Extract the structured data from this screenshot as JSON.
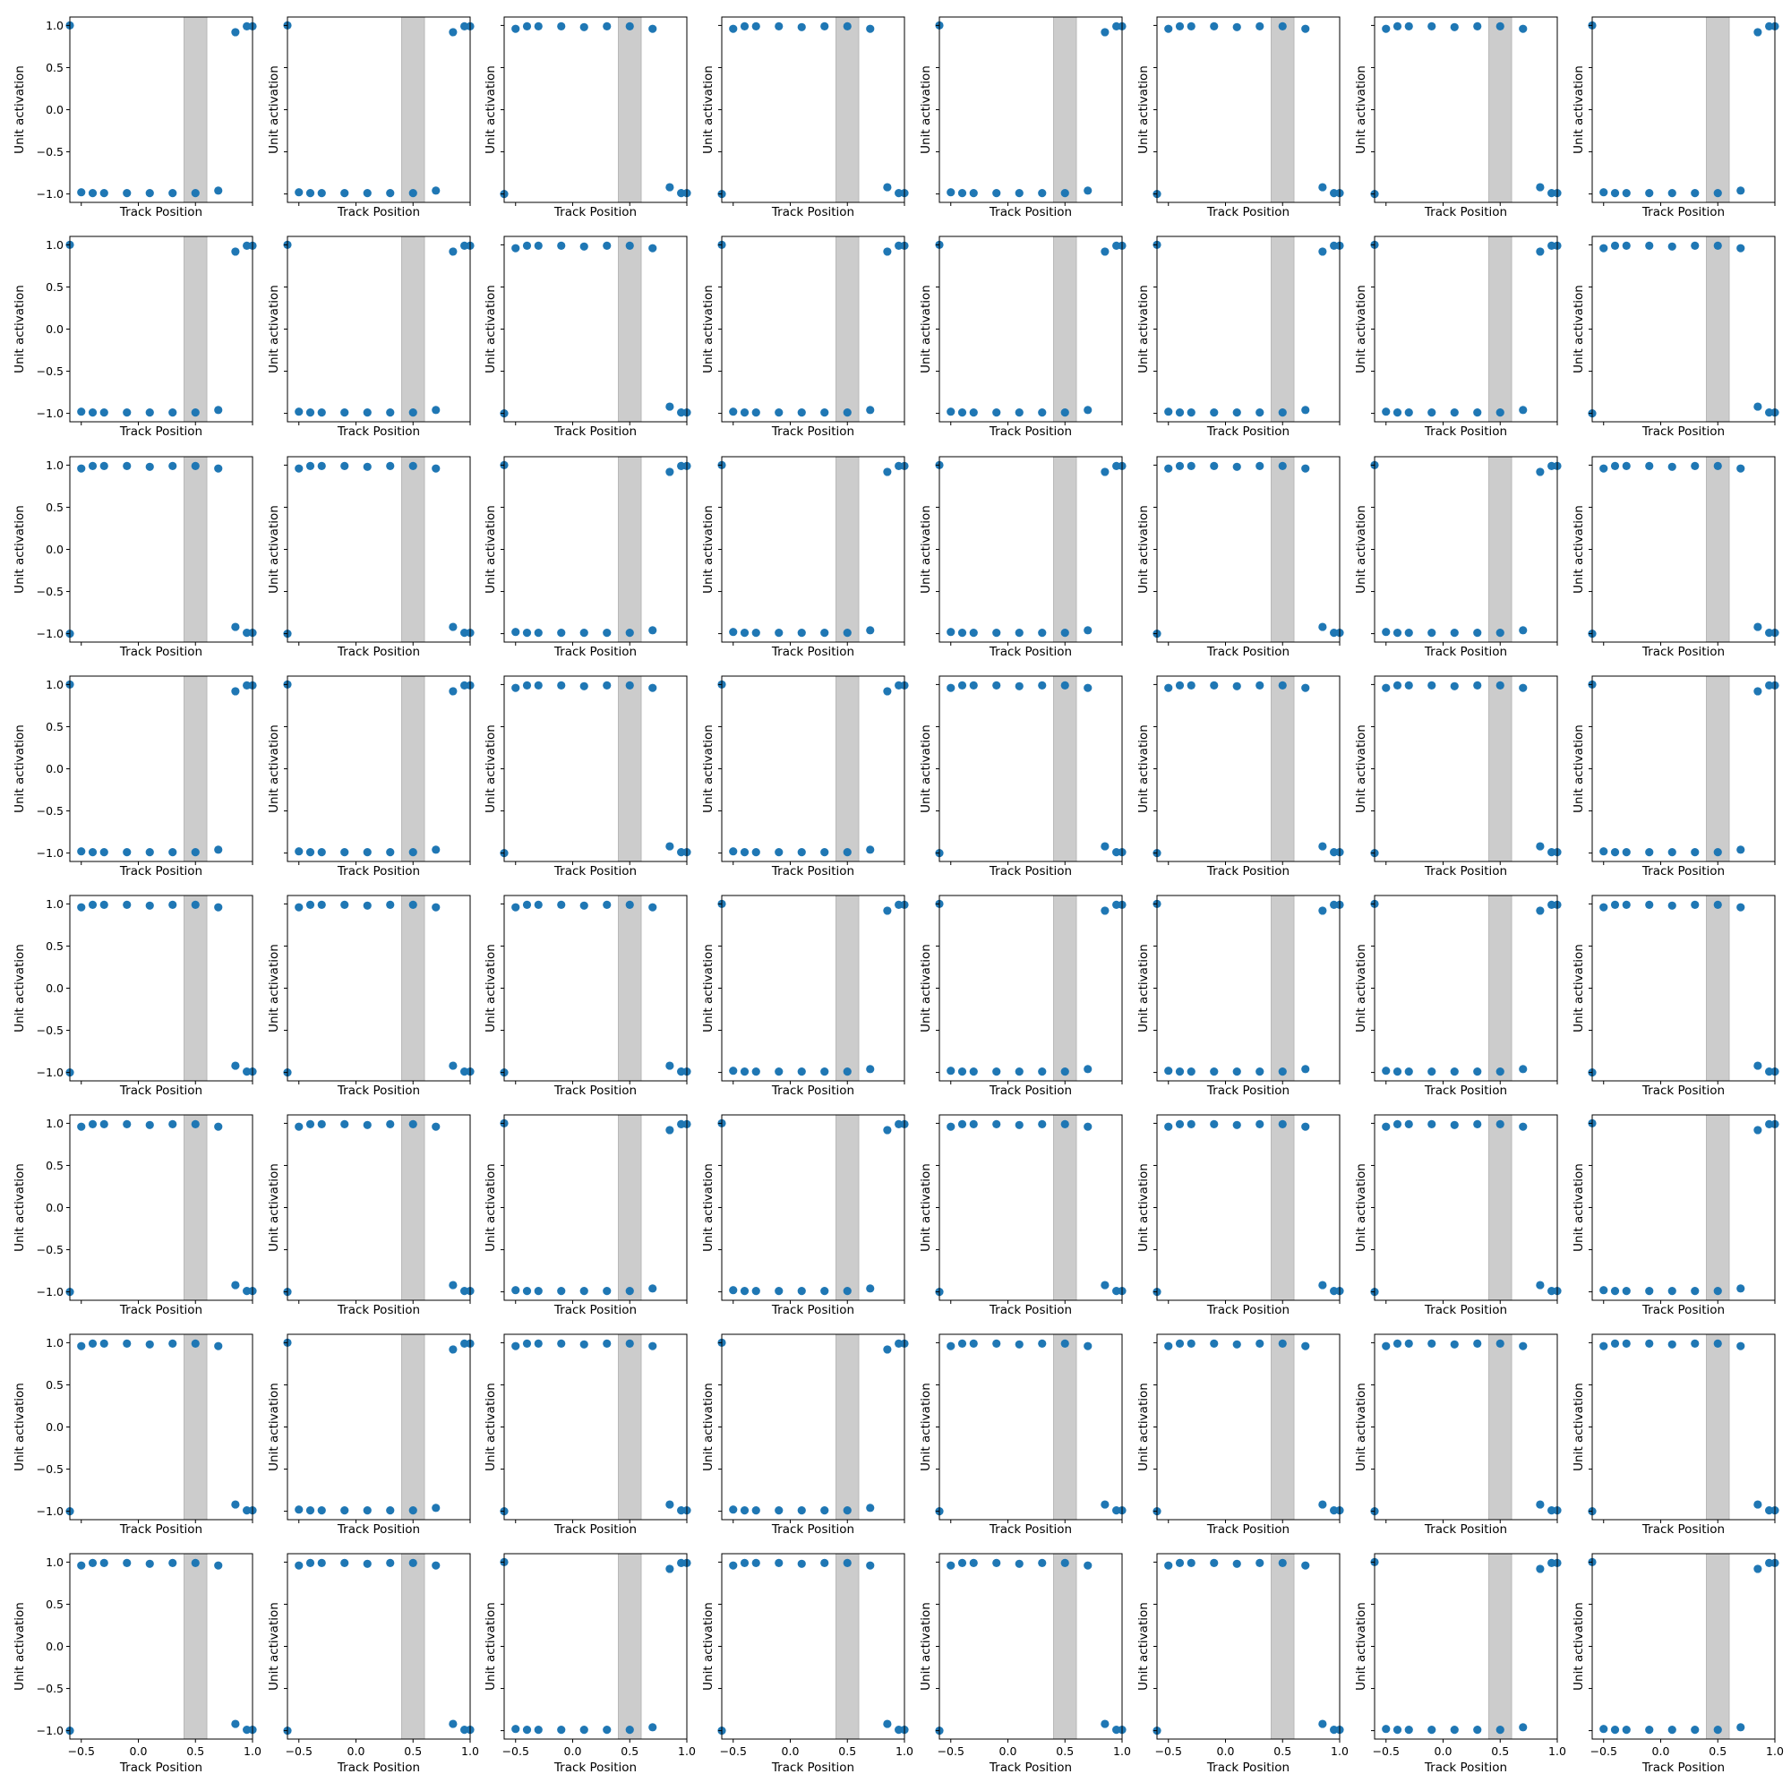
{
  "figure": {
    "marker_color": "#1f77b4",
    "band_color": "#cccccc",
    "background": "#ffffff"
  },
  "chart_data": {
    "type": "scatter",
    "layout": "8x8 grid of small multiples",
    "xlabel": "Track Position",
    "ylabel": "Unit activation",
    "xlim": [
      -0.6,
      1.0
    ],
    "ylim": [
      -1.1,
      1.1
    ],
    "x_ticks": [
      -0.5,
      0.0,
      0.5,
      1.0
    ],
    "x_tick_labels": [
      "−0.5",
      "0.0",
      "0.5",
      "1.0"
    ],
    "y_ticks": [
      -1.0,
      -0.5,
      0.0,
      0.5,
      1.0
    ],
    "y_tick_labels": [
      "−1.0",
      "−0.5",
      "0.0",
      "0.5",
      "1.0"
    ],
    "shaded_band": [
      0.4,
      0.6
    ],
    "x_positions": [
      -0.6,
      -0.5,
      -0.4,
      -0.3,
      -0.1,
      0.1,
      0.3,
      0.5,
      0.7,
      0.85,
      0.95,
      1.0
    ],
    "pattern_A_values": [
      1.0,
      -0.98,
      -0.99,
      -0.99,
      -0.99,
      -0.99,
      -0.99,
      -0.99,
      -0.96,
      0.92,
      0.99,
      0.99
    ],
    "pattern_B_values": [
      -1.0,
      0.96,
      0.99,
      0.99,
      0.99,
      0.98,
      0.99,
      0.99,
      0.96,
      -0.92,
      -0.99,
      -0.99
    ],
    "grid": false,
    "legend": "none",
    "panel_patterns": [
      [
        "A",
        "A",
        "B",
        "B",
        "A",
        "B",
        "B",
        "A"
      ],
      [
        "A",
        "A",
        "B",
        "A",
        "A",
        "A",
        "A",
        "B"
      ],
      [
        "B",
        "B",
        "A",
        "A",
        "A",
        "B",
        "A",
        "B"
      ],
      [
        "A",
        "A",
        "B",
        "A",
        "B",
        "B",
        "B",
        "A"
      ],
      [
        "B",
        "B",
        "B",
        "A",
        "A",
        "A",
        "A",
        "B"
      ],
      [
        "B",
        "B",
        "A",
        "A",
        "B",
        "B",
        "B",
        "A"
      ],
      [
        "B",
        "A",
        "B",
        "A",
        "B",
        "B",
        "B",
        "B"
      ],
      [
        "B",
        "B",
        "A",
        "B",
        "B",
        "B",
        "A",
        "A"
      ]
    ]
  }
}
